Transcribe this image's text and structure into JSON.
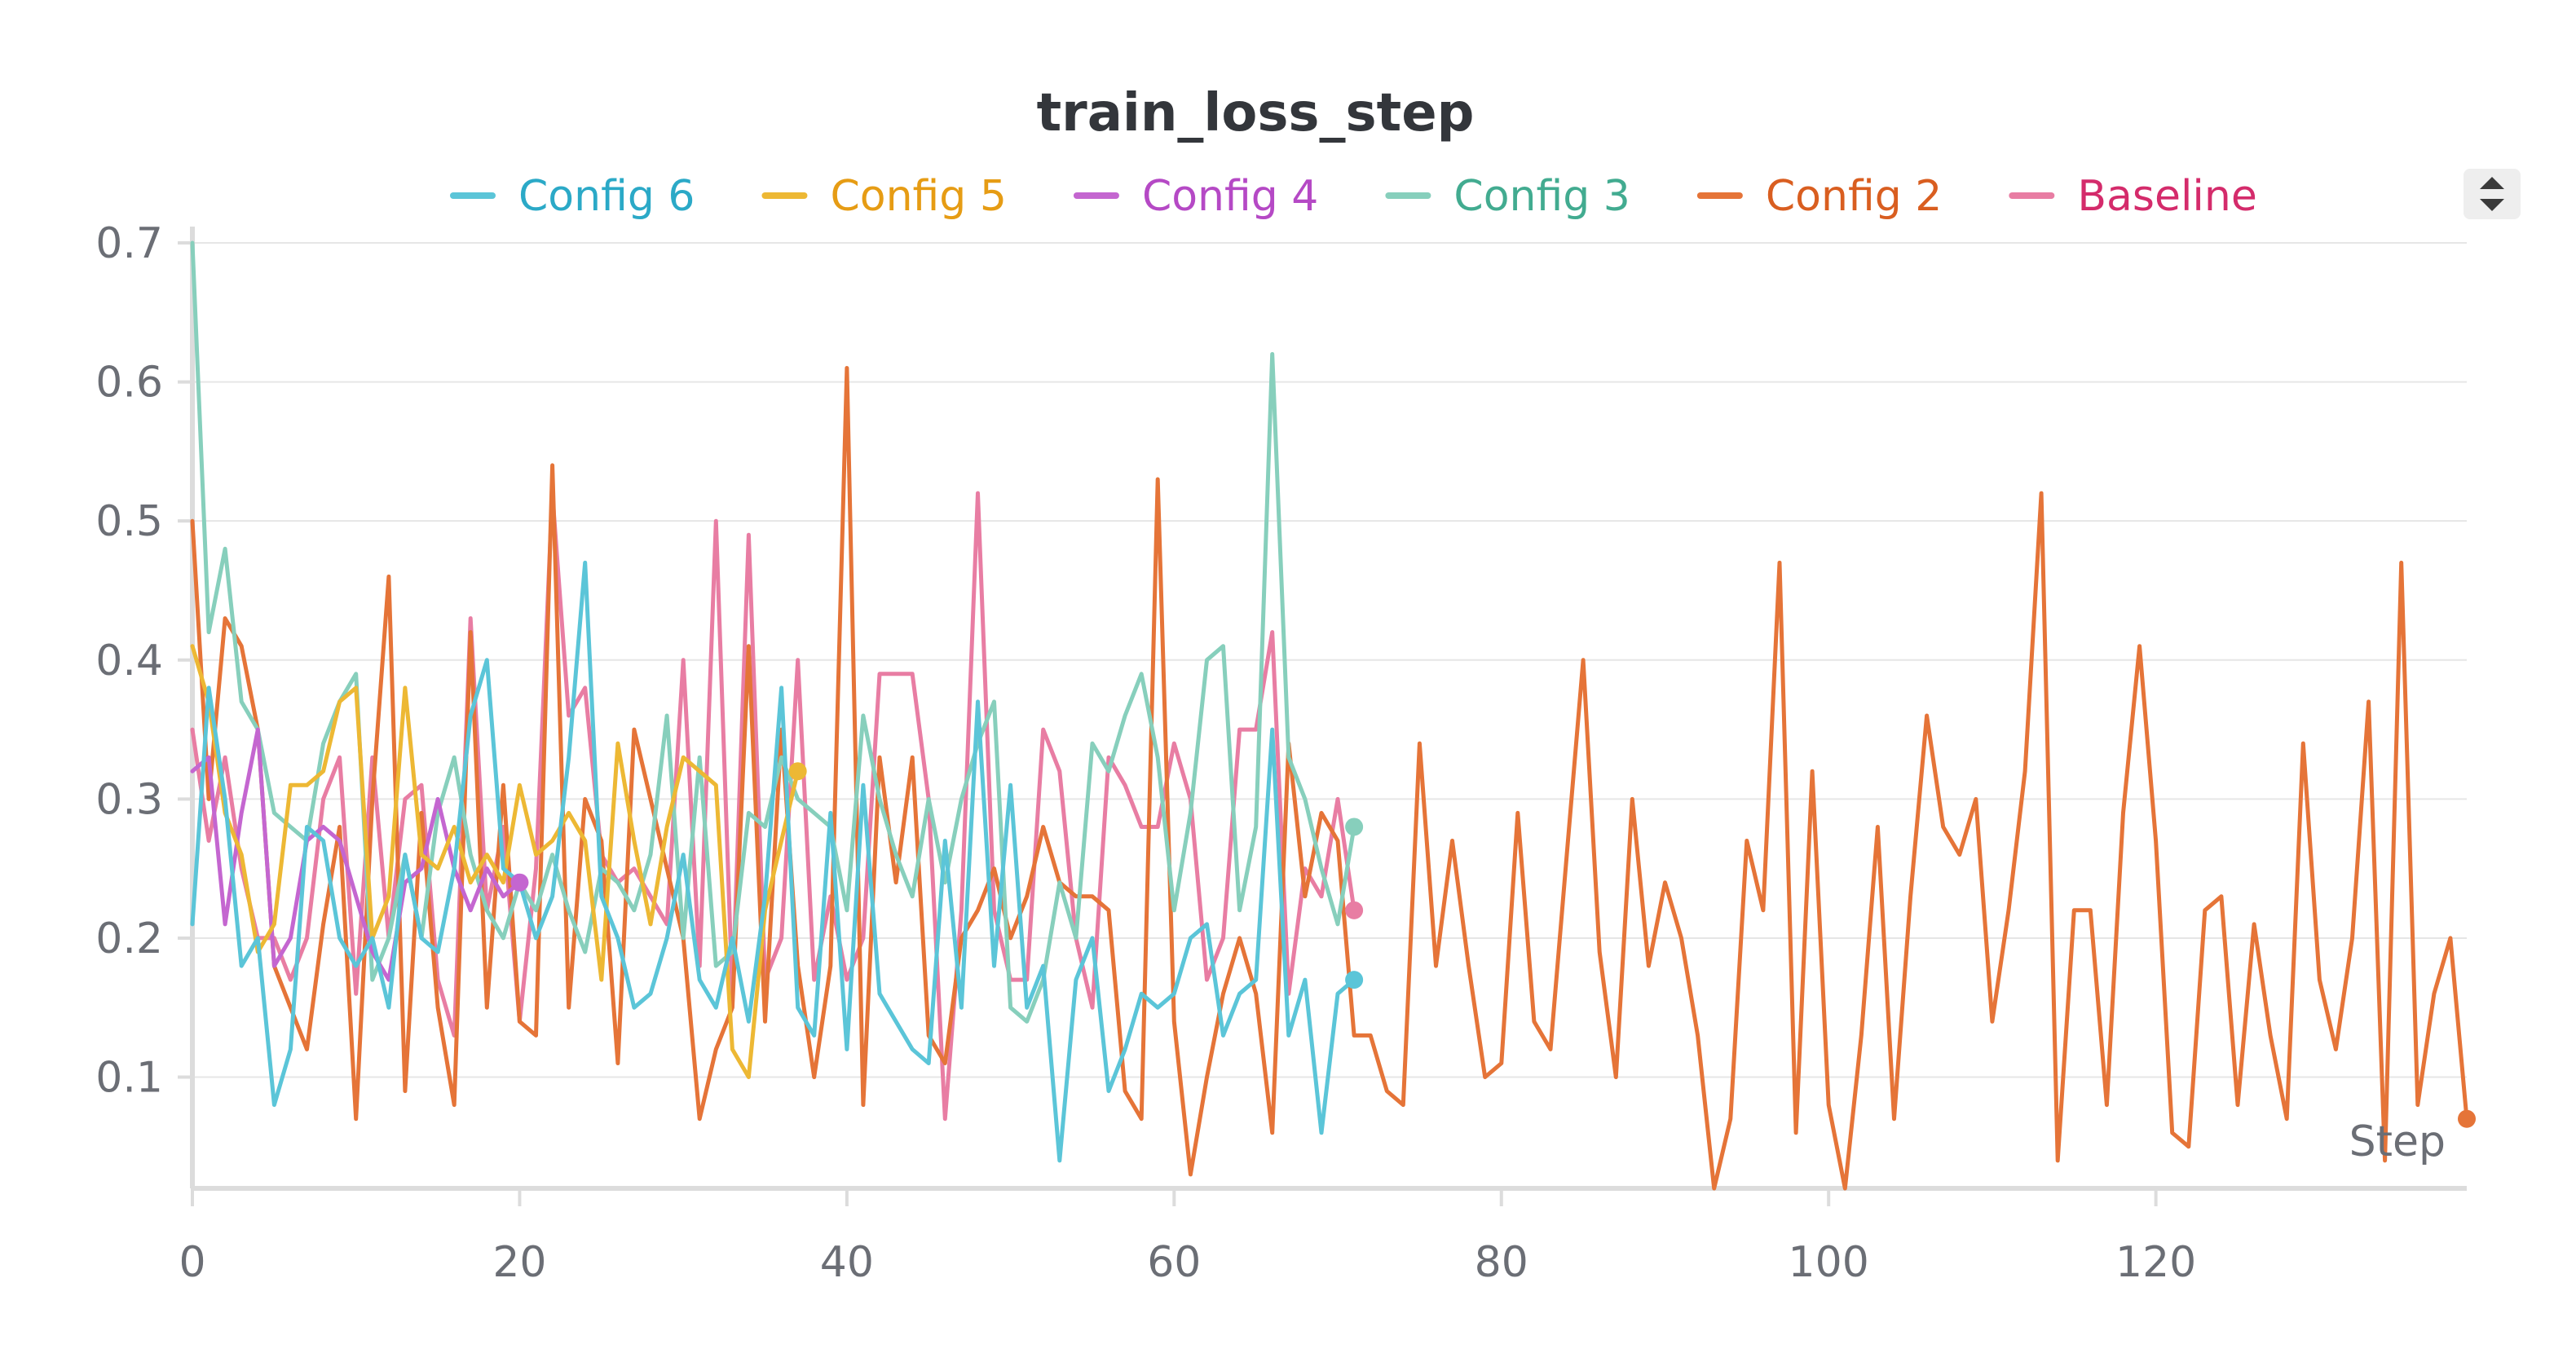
{
  "chart_data": {
    "type": "line",
    "title": "train_loss_step",
    "xlabel": "Step",
    "ylabel": "",
    "xlim": [
      0,
      139
    ],
    "ylim": [
      0.02,
      0.7
    ],
    "x_ticks": [
      0,
      20,
      40,
      60,
      80,
      100,
      120
    ],
    "y_ticks": [
      0.1,
      0.2,
      0.3,
      0.4,
      0.5,
      0.6,
      0.7
    ],
    "grid": true,
    "legend_position": "top",
    "series": [
      {
        "name": "Config 6",
        "line_color": "#5bc5d8",
        "text_color": "#2ba9c7",
        "x_start": 0,
        "values": [
          0.21,
          0.38,
          0.3,
          0.18,
          0.2,
          0.08,
          0.12,
          0.28,
          0.27,
          0.2,
          0.18,
          0.2,
          0.15,
          0.26,
          0.2,
          0.19,
          0.25,
          0.36,
          0.4,
          0.25,
          0.24,
          0.2,
          0.23,
          0.33,
          0.47,
          0.23,
          0.2,
          0.15,
          0.16,
          0.2,
          0.26,
          0.17,
          0.15,
          0.2,
          0.14,
          0.23,
          0.38,
          0.15,
          0.13,
          0.29,
          0.12,
          0.31,
          0.16,
          0.14,
          0.12,
          0.11,
          0.27,
          0.15,
          0.37,
          0.18,
          0.31,
          0.15,
          0.18,
          0.04,
          0.17,
          0.2,
          0.09,
          0.12,
          0.16,
          0.15,
          0.16,
          0.2,
          0.21,
          0.13,
          0.16,
          0.17,
          0.35,
          0.13,
          0.17,
          0.06,
          0.16,
          0.17
        ]
      },
      {
        "name": "Config 5",
        "line_color": "#edb834",
        "text_color": "#e69c14",
        "x_start": 0,
        "values": [
          0.41,
          0.37,
          0.29,
          0.26,
          0.19,
          0.21,
          0.31,
          0.31,
          0.32,
          0.37,
          0.38,
          0.2,
          0.23,
          0.38,
          0.26,
          0.25,
          0.28,
          0.24,
          0.26,
          0.24,
          0.31,
          0.26,
          0.27,
          0.29,
          0.27,
          0.17,
          0.34,
          0.27,
          0.21,
          0.28,
          0.33,
          0.32,
          0.31,
          0.12,
          0.1,
          0.22,
          0.27,
          0.32
        ]
      },
      {
        "name": "Config 4",
        "line_color": "#c466d0",
        "text_color": "#b549c5",
        "x_start": 0,
        "values": [
          0.32,
          0.33,
          0.21,
          0.29,
          0.35,
          0.18,
          0.2,
          0.27,
          0.28,
          0.27,
          0.23,
          0.19,
          0.17,
          0.24,
          0.25,
          0.3,
          0.25,
          0.22,
          0.25,
          0.23,
          0.24
        ]
      },
      {
        "name": "Config 3",
        "line_color": "#87cfbc",
        "text_color": "#42ab90",
        "x_start": 0,
        "values": [
          0.7,
          0.42,
          0.48,
          0.37,
          0.35,
          0.29,
          0.28,
          0.27,
          0.34,
          0.37,
          0.39,
          0.17,
          0.2,
          0.26,
          0.2,
          0.29,
          0.33,
          0.26,
          0.22,
          0.2,
          0.24,
          0.22,
          0.26,
          0.22,
          0.19,
          0.25,
          0.24,
          0.22,
          0.26,
          0.36,
          0.2,
          0.33,
          0.18,
          0.19,
          0.29,
          0.28,
          0.33,
          0.3,
          0.29,
          0.28,
          0.22,
          0.36,
          0.3,
          0.26,
          0.23,
          0.3,
          0.24,
          0.3,
          0.34,
          0.37,
          0.15,
          0.14,
          0.17,
          0.24,
          0.2,
          0.34,
          0.32,
          0.36,
          0.39,
          0.33,
          0.22,
          0.29,
          0.4,
          0.41,
          0.22,
          0.28,
          0.62,
          0.33,
          0.3,
          0.25,
          0.21,
          0.28
        ]
      },
      {
        "name": "Config 2",
        "line_color": "#e57438",
        "text_color": "#d95e20",
        "x_start": 0,
        "values": [
          0.5,
          0.3,
          0.43,
          0.41,
          0.35,
          0.18,
          0.15,
          0.12,
          0.21,
          0.28,
          0.07,
          0.3,
          0.46,
          0.09,
          0.29,
          0.15,
          0.08,
          0.42,
          0.15,
          0.31,
          0.14,
          0.13,
          0.54,
          0.15,
          0.3,
          0.27,
          0.11,
          0.35,
          0.3,
          0.25,
          0.2,
          0.07,
          0.12,
          0.15,
          0.41,
          0.14,
          0.35,
          0.18,
          0.1,
          0.18,
          0.61,
          0.08,
          0.33,
          0.24,
          0.33,
          0.13,
          0.11,
          0.2,
          0.22,
          0.25,
          0.2,
          0.23,
          0.28,
          0.24,
          0.23,
          0.23,
          0.22,
          0.09,
          0.07,
          0.53,
          0.14,
          0.03,
          0.1,
          0.16,
          0.2,
          0.16,
          0.06,
          0.34,
          0.23,
          0.29,
          0.27,
          0.13,
          0.13,
          0.09,
          0.08,
          0.34,
          0.18,
          0.27,
          0.18,
          0.1,
          0.11,
          0.29,
          0.14,
          0.12,
          0.26,
          0.4,
          0.19,
          0.1,
          0.3,
          0.18,
          0.24,
          0.2,
          0.13,
          0.02,
          0.07,
          0.27,
          0.22,
          0.47,
          0.06,
          0.32,
          0.08,
          0.02,
          0.13,
          0.28,
          0.07,
          0.23,
          0.36,
          0.28,
          0.26,
          0.3,
          0.14,
          0.22,
          0.32,
          0.52,
          0.04,
          0.22,
          0.22,
          0.08,
          0.29,
          0.41,
          0.27,
          0.06,
          0.05,
          0.22,
          0.23,
          0.08,
          0.21,
          0.13,
          0.07,
          0.34,
          0.17,
          0.12,
          0.2,
          0.37,
          0.04,
          0.47,
          0.08,
          0.16,
          0.2,
          0.07
        ]
      },
      {
        "name": "Baseline",
        "line_color": "#e87da3",
        "text_color": "#d42b6b",
        "x_start": 0,
        "values": [
          0.35,
          0.27,
          0.33,
          0.25,
          0.2,
          0.2,
          0.17,
          0.2,
          0.3,
          0.33,
          0.16,
          0.33,
          0.2,
          0.3,
          0.31,
          0.17,
          0.13,
          0.43,
          0.22,
          0.28,
          0.14,
          0.25,
          0.52,
          0.36,
          0.38,
          0.26,
          0.24,
          0.25,
          0.23,
          0.21,
          0.4,
          0.18,
          0.5,
          0.16,
          0.49,
          0.17,
          0.2,
          0.4,
          0.17,
          0.23,
          0.17,
          0.2,
          0.39,
          0.39,
          0.39,
          0.3,
          0.07,
          0.22,
          0.52,
          0.22,
          0.17,
          0.17,
          0.35,
          0.32,
          0.2,
          0.15,
          0.33,
          0.31,
          0.28,
          0.28,
          0.34,
          0.3,
          0.17,
          0.2,
          0.35,
          0.35,
          0.42,
          0.16,
          0.25,
          0.23,
          0.3,
          0.22
        ]
      }
    ]
  }
}
